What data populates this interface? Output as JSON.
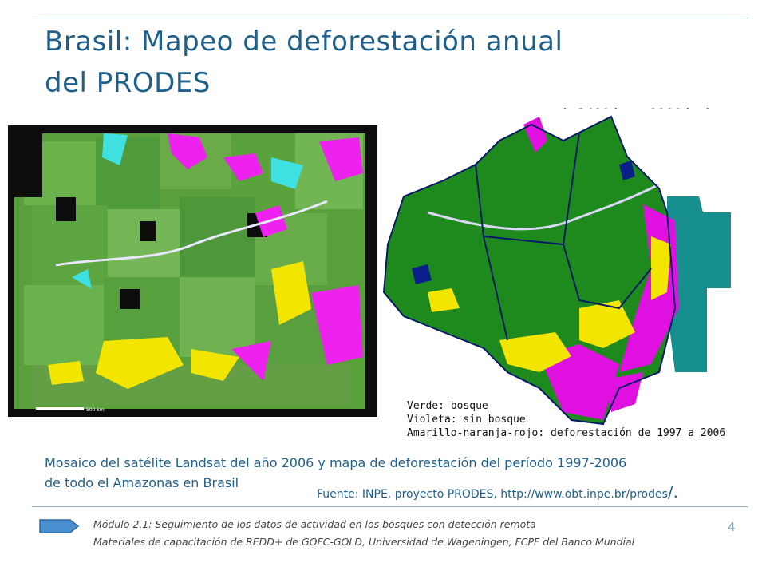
{
  "slide": {
    "title_line1": "Brasil: Mapeo de deforestación anual",
    "title_line2": "del PRODES",
    "dimensions_note": "(~3400 km x 2200 km)",
    "legend": {
      "line1": "Verde: bosque",
      "line2": "Violeta: sin bosque",
      "line3": "Amarillo-naranja-rojo: deforestación de 1997 a 2006"
    },
    "caption_line1": "Mosaico del satélite Landsat del año 2006 y mapa de deforestación del período 1997-2006",
    "caption_line2": "de todo el Amazonas en Brasil",
    "source_text": "Fuente: INPE, proyecto PRODES, http://www.obt.inpe.br/prodes",
    "source_trailing": "/.",
    "footer_line1": "Módulo 2.1: Seguimiento de los datos de actividad en los bosques con detección remota",
    "footer_line2": "Materiales de capacitación de REDD+ de GOFC-GOLD, Universidad de Wageningen, FCPF del Banco Mundial",
    "page_number": "4",
    "landsat_scale_label": "500 km"
  },
  "colors": {
    "title": "#1f5f8b",
    "rule": "#8fb0c8",
    "forest_green": "#1e8a1e",
    "nonforest_violet": "#e011e0",
    "deforestation_yellow": "#f2e500",
    "water_blue": "#0b1f8a",
    "border_teal": "#178f8f",
    "arrow_blue": "#4a8fd0"
  }
}
